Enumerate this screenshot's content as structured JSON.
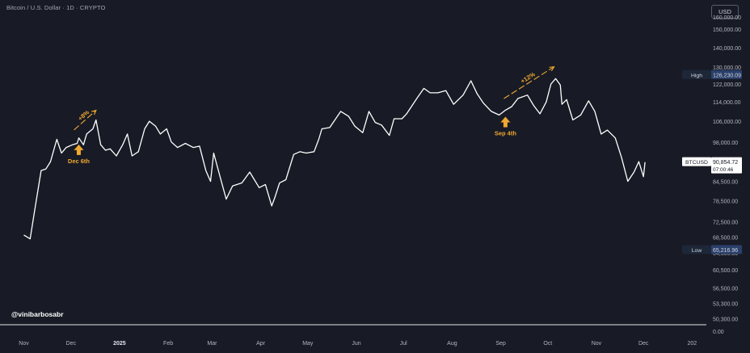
{
  "header": {
    "symbol_title": "Bitcoin / U.S. Dollar · 1D · CRYPTO",
    "currency_button": "USD"
  },
  "watermark": "@vinibarbosabr",
  "colors": {
    "background": "#181b25",
    "line": "#ffffff",
    "annotation": "#f0a830",
    "label_bg": "#2a3f6a",
    "price_label_bg": "#ffffff",
    "axis_text": "#b2b5be"
  },
  "chart_data": {
    "type": "line",
    "title": "Bitcoin / U.S. Dollar · 1D · CRYPTO",
    "series": [
      {
        "name": "BTCUSD",
        "points": [
          [
            "2024-11-01",
            69000
          ],
          [
            "2024-11-05",
            68000
          ],
          [
            "2024-11-08",
            76000
          ],
          [
            "2024-11-12",
            88000
          ],
          [
            "2024-11-15",
            88500
          ],
          [
            "2024-11-18",
            91000
          ],
          [
            "2024-11-22",
            99000
          ],
          [
            "2024-11-25",
            94000
          ],
          [
            "2024-11-28",
            96000
          ],
          [
            "2024-12-02",
            97000
          ],
          [
            "2024-12-05",
            97500
          ],
          [
            "2024-12-06",
            99500
          ],
          [
            "2024-12-09",
            97000
          ],
          [
            "2024-12-11",
            101000
          ],
          [
            "2024-12-15",
            103000
          ],
          [
            "2024-12-17",
            106500
          ],
          [
            "2024-12-20",
            97000
          ],
          [
            "2024-12-23",
            95000
          ],
          [
            "2024-12-26",
            95500
          ],
          [
            "2024-12-30",
            93000
          ],
          [
            "2025-01-03",
            97000
          ],
          [
            "2025-01-06",
            101000
          ],
          [
            "2025-01-09",
            93000
          ],
          [
            "2025-01-13",
            94500
          ],
          [
            "2025-01-17",
            103000
          ],
          [
            "2025-01-20",
            106000
          ],
          [
            "2025-01-24",
            104000
          ],
          [
            "2025-01-27",
            101000
          ],
          [
            "2025-01-31",
            103000
          ],
          [
            "2025-02-03",
            98000
          ],
          [
            "2025-02-07",
            96000
          ],
          [
            "2025-02-12",
            97500
          ],
          [
            "2025-02-17",
            96000
          ],
          [
            "2025-02-21",
            96500
          ],
          [
            "2025-02-25",
            88000
          ],
          [
            "2025-02-28",
            84500
          ],
          [
            "2025-03-02",
            94000
          ],
          [
            "2025-03-05",
            88000
          ],
          [
            "2025-03-10",
            79000
          ],
          [
            "2025-03-14",
            83000
          ],
          [
            "2025-03-20",
            84000
          ],
          [
            "2025-03-25",
            87500
          ],
          [
            "2025-03-31",
            82500
          ],
          [
            "2025-04-04",
            83500
          ],
          [
            "2025-04-08",
            77000
          ],
          [
            "2025-04-10",
            79500
          ],
          [
            "2025-04-13",
            84000
          ],
          [
            "2025-04-17",
            85000
          ],
          [
            "2025-04-22",
            93500
          ],
          [
            "2025-04-26",
            94500
          ],
          [
            "2025-04-30",
            94000
          ],
          [
            "2025-05-05",
            94500
          ],
          [
            "2025-05-08",
            99000
          ],
          [
            "2025-05-10",
            103000
          ],
          [
            "2025-05-15",
            103500
          ],
          [
            "2025-05-22",
            110000
          ],
          [
            "2025-05-27",
            108000
          ],
          [
            "2025-05-31",
            104000
          ],
          [
            "2025-06-05",
            101500
          ],
          [
            "2025-06-09",
            110000
          ],
          [
            "2025-06-13",
            105500
          ],
          [
            "2025-06-17",
            104500
          ],
          [
            "2025-06-22",
            100500
          ],
          [
            "2025-06-25",
            107000
          ],
          [
            "2025-06-30",
            107000
          ],
          [
            "2025-07-03",
            109000
          ],
          [
            "2025-07-10",
            116000
          ],
          [
            "2025-07-14",
            120000
          ],
          [
            "2025-07-18",
            118000
          ],
          [
            "2025-07-23",
            118000
          ],
          [
            "2025-07-28",
            119000
          ],
          [
            "2025-08-02",
            113000
          ],
          [
            "2025-08-08",
            117000
          ],
          [
            "2025-08-13",
            123500
          ],
          [
            "2025-08-17",
            117500
          ],
          [
            "2025-08-21",
            113500
          ],
          [
            "2025-08-26",
            110000
          ],
          [
            "2025-08-31",
            108500
          ],
          [
            "2025-09-04",
            110500
          ],
          [
            "2025-09-08",
            112000
          ],
          [
            "2025-09-12",
            115500
          ],
          [
            "2025-09-18",
            117000
          ],
          [
            "2025-09-22",
            112500
          ],
          [
            "2025-09-26",
            109000
          ],
          [
            "2025-09-30",
            114000
          ],
          [
            "2025-10-03",
            122000
          ],
          [
            "2025-10-06",
            124500
          ],
          [
            "2025-10-09",
            121500
          ],
          [
            "2025-10-10",
            113000
          ],
          [
            "2025-10-13",
            115000
          ],
          [
            "2025-10-17",
            106500
          ],
          [
            "2025-10-22",
            108500
          ],
          [
            "2025-10-27",
            114500
          ],
          [
            "2025-10-31",
            110000
          ],
          [
            "2025-11-04",
            101000
          ],
          [
            "2025-11-08",
            102500
          ],
          [
            "2025-11-13",
            99500
          ],
          [
            "2025-11-17",
            92500
          ],
          [
            "2025-11-21",
            84500
          ],
          [
            "2025-11-25",
            87500
          ],
          [
            "2025-11-28",
            91000
          ],
          [
            "2025-12-01",
            86000
          ],
          [
            "2025-12-02",
            90854.72
          ]
        ]
      }
    ],
    "y_scale": "log",
    "ylim": [
      48000,
      160000
    ],
    "xlim": [
      "2024-10-24",
      "2026-01-07"
    ],
    "y_ticks": [
      "150,000.00",
      "140,000.00",
      "130,000.00",
      "122,000.00",
      "114,000.00",
      "106,000.00",
      "98,000.00",
      "84,500.00",
      "78,500.00",
      "72,500.00",
      "68,500.00",
      "64,500.00",
      "60,500.00",
      "56,500.00",
      "53,300.00",
      "50,300.00"
    ],
    "y_tick_values": [
      150000,
      140000,
      130000,
      122000,
      114000,
      106000,
      98000,
      84500,
      78500,
      72500,
      68500,
      64500,
      60500,
      56500,
      53300,
      50300
    ],
    "y_top_label": "160,000.00",
    "zero_label": "0.00",
    "x_ticks": [
      {
        "label": "Nov",
        "date": "2024-11-01"
      },
      {
        "label": "Dec",
        "date": "2024-12-01"
      },
      {
        "label": "2025",
        "date": "2025-01-01"
      },
      {
        "label": "Feb",
        "date": "2025-02-01"
      },
      {
        "label": "Mar",
        "date": "2025-03-01"
      },
      {
        "label": "Apr",
        "date": "2025-04-01"
      },
      {
        "label": "May",
        "date": "2025-05-01"
      },
      {
        "label": "Jun",
        "date": "2025-06-01"
      },
      {
        "label": "Jul",
        "date": "2025-07-01"
      },
      {
        "label": "Aug",
        "date": "2025-08-01"
      },
      {
        "label": "Sep",
        "date": "2025-09-01"
      },
      {
        "label": "Oct",
        "date": "2025-10-01"
      },
      {
        "label": "Nov",
        "date": "2025-11-01"
      },
      {
        "label": "Dec",
        "date": "2025-12-01"
      },
      {
        "label": "202",
        "date": "2026-01-01"
      }
    ],
    "price_labels": {
      "high": {
        "tag": "High",
        "value": "126,230.09",
        "numeric": 126230.09
      },
      "last": {
        "tag": "BTCUSD",
        "value": "90,854.72",
        "countdown": "07:00:46",
        "numeric": 90854.72
      },
      "low": {
        "tag": "Low",
        "value": "65,216.96",
        "numeric": 65216.96
      }
    },
    "annotations": [
      {
        "label": "Dec 6th",
        "date": "2024-12-06",
        "price": 99500,
        "move": "+8%",
        "move_from": [
          "2024-12-03",
          99500
        ],
        "move_to": [
          "2024-12-17",
          106500
        ]
      },
      {
        "label": "Sep 4th",
        "date": "2025-09-04",
        "price": 110500,
        "move": "+12%",
        "move_from": [
          "2025-09-03",
          112000
        ],
        "move_to": [
          "2025-10-05",
          125500
        ]
      }
    ],
    "grid": false
  }
}
